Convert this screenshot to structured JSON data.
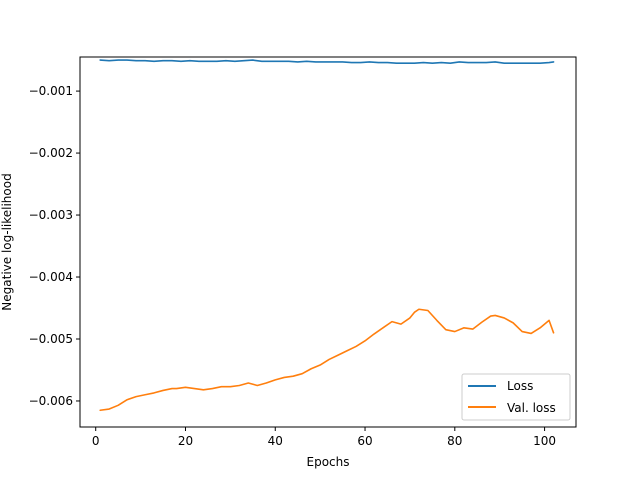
{
  "chart_data": {
    "type": "line",
    "title": "",
    "xlabel": "Epochs",
    "ylabel": "Negative log-likelihood",
    "xlim": [
      -3.5,
      107
    ],
    "ylim": [
      -0.00642,
      -0.00045
    ],
    "x_ticks": [
      0,
      20,
      40,
      60,
      80,
      100
    ],
    "x_tick_labels": [
      "0",
      "20",
      "40",
      "60",
      "80",
      "100"
    ],
    "y_ticks": [
      -0.001,
      -0.002,
      -0.003,
      -0.004,
      -0.005,
      -0.006
    ],
    "y_tick_labels": [
      "−0.001",
      "−0.002",
      "−0.003",
      "−0.004",
      "−0.005",
      "−0.006"
    ],
    "grid": false,
    "legend_position": "lower-right",
    "series": [
      {
        "name": "Loss",
        "color": "#1f77b4",
        "x": [
          1,
          3,
          5,
          7,
          9,
          11,
          13,
          15,
          17,
          19,
          21,
          23,
          25,
          27,
          29,
          31,
          33,
          35,
          37,
          39,
          41,
          43,
          45,
          47,
          49,
          51,
          53,
          55,
          57,
          59,
          61,
          63,
          65,
          67,
          69,
          71,
          73,
          75,
          77,
          79,
          81,
          83,
          85,
          87,
          89,
          91,
          93,
          95,
          97,
          99,
          101,
          102
        ],
        "values": [
          -0.0005,
          -0.00051,
          -0.0005,
          -0.0005,
          -0.00051,
          -0.00051,
          -0.00052,
          -0.00051,
          -0.00051,
          -0.00052,
          -0.00051,
          -0.00052,
          -0.00052,
          -0.00052,
          -0.00051,
          -0.00052,
          -0.00051,
          -0.0005,
          -0.00052,
          -0.00052,
          -0.00052,
          -0.00052,
          -0.00053,
          -0.00052,
          -0.00053,
          -0.00053,
          -0.00053,
          -0.00053,
          -0.00054,
          -0.00054,
          -0.00053,
          -0.00054,
          -0.00054,
          -0.00055,
          -0.00055,
          -0.00055,
          -0.00054,
          -0.00055,
          -0.00054,
          -0.00055,
          -0.00053,
          -0.00054,
          -0.00054,
          -0.00054,
          -0.00053,
          -0.00055,
          -0.00055,
          -0.00055,
          -0.00055,
          -0.00055,
          -0.00054,
          -0.00053
        ]
      },
      {
        "name": "Val. loss",
        "color": "#ff7f0e",
        "x": [
          1,
          3,
          5,
          7,
          9,
          11,
          13,
          15,
          17,
          18,
          20,
          22,
          24,
          26,
          28,
          30,
          32,
          34,
          36,
          38,
          40,
          42,
          44,
          46,
          48,
          50,
          52,
          54,
          56,
          58,
          60,
          62,
          64,
          66,
          68,
          70,
          71,
          72,
          74,
          76,
          78,
          80,
          82,
          84,
          86,
          88,
          89,
          91,
          93,
          95,
          97,
          99,
          101,
          102
        ],
        "values": [
          -0.00615,
          -0.00613,
          -0.00607,
          -0.00598,
          -0.00593,
          -0.0059,
          -0.00587,
          -0.00583,
          -0.0058,
          -0.0058,
          -0.00578,
          -0.0058,
          -0.00582,
          -0.0058,
          -0.00577,
          -0.00577,
          -0.00575,
          -0.00571,
          -0.00575,
          -0.00571,
          -0.00566,
          -0.00562,
          -0.0056,
          -0.00556,
          -0.00548,
          -0.00542,
          -0.00533,
          -0.00526,
          -0.00519,
          -0.00512,
          -0.00503,
          -0.00492,
          -0.00482,
          -0.00472,
          -0.00476,
          -0.00466,
          -0.00457,
          -0.00452,
          -0.00454,
          -0.0047,
          -0.00485,
          -0.00488,
          -0.00482,
          -0.00484,
          -0.00473,
          -0.00463,
          -0.00462,
          -0.00466,
          -0.00474,
          -0.00488,
          -0.00491,
          -0.00482,
          -0.0047,
          -0.0049
        ]
      }
    ]
  }
}
